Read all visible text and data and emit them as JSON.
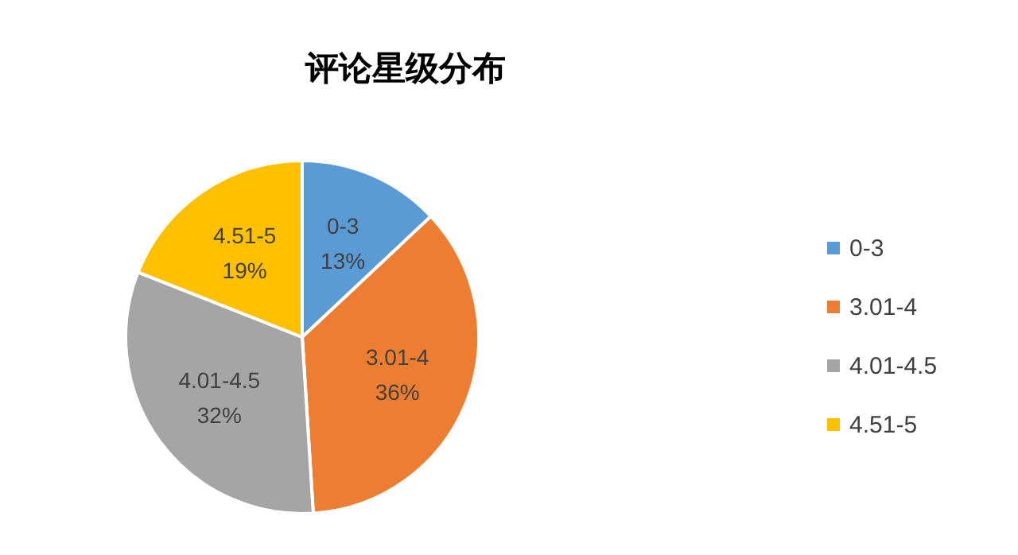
{
  "chart_data": {
    "type": "pie",
    "title": "评论星级分布",
    "categories": [
      "0-3",
      "3.01-4",
      "4.01-4.5",
      "4.51-5"
    ],
    "values": [
      13,
      36,
      32,
      19
    ],
    "value_labels": [
      "13%",
      "36%",
      "32%",
      "19%"
    ],
    "colors": [
      "#5b9bd5",
      "#ed7d31",
      "#a5a5a5",
      "#ffc000"
    ],
    "legend": "right"
  }
}
